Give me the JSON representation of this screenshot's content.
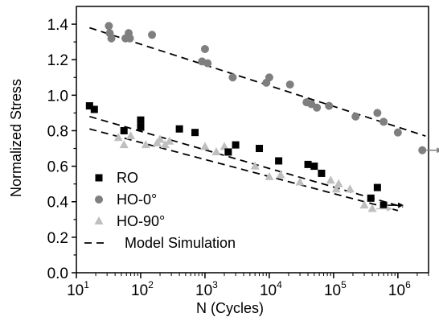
{
  "chart_data": {
    "type": "scatter",
    "xlabel": "N (Cycles)",
    "ylabel": "Normalized Stress",
    "x_scale": "log",
    "xlim": [
      10,
      3000000
    ],
    "ylim": [
      0.0,
      1.5
    ],
    "x_tick_labels": [
      {
        "value": 10,
        "base": "10",
        "exp": "1"
      },
      {
        "value": 100,
        "base": "10",
        "exp": "2"
      },
      {
        "value": 1000,
        "base": "10",
        "exp": "3"
      },
      {
        "value": 10000,
        "base": "10",
        "exp": "4"
      },
      {
        "value": 100000,
        "base": "10",
        "exp": "5"
      },
      {
        "value": 1000000,
        "base": "10",
        "exp": "6"
      }
    ],
    "y_tick_labels": [
      "0.0",
      "0.2",
      "0.4",
      "0.6",
      "0.8",
      "1.0",
      "1.2",
      "1.4"
    ],
    "y_ticks": [
      0.0,
      0.2,
      0.4,
      0.6,
      0.8,
      1.0,
      1.2,
      1.4
    ],
    "grid": false,
    "legend_position": "bottom-left",
    "series": [
      {
        "name": "RO",
        "marker": "square",
        "color": "#000000",
        "points": [
          [
            16,
            0.94
          ],
          [
            19,
            0.92
          ],
          [
            55,
            0.8
          ],
          [
            100,
            0.86
          ],
          [
            100,
            0.82
          ],
          [
            400,
            0.81
          ],
          [
            700,
            0.79
          ],
          [
            2300,
            0.68
          ],
          [
            3000,
            0.72
          ],
          [
            7000,
            0.7
          ],
          [
            14000,
            0.63
          ],
          [
            40000,
            0.61
          ],
          [
            50000,
            0.6
          ],
          [
            65000,
            0.56
          ],
          [
            380000,
            0.42
          ],
          [
            480000,
            0.48
          ],
          [
            600000,
            0.38
          ]
        ],
        "runout_arrows": [
          [
            600000,
            0.38
          ]
        ]
      },
      {
        "name": "HO-0°",
        "marker": "circle",
        "color": "#7f7f7f",
        "points": [
          [
            32,
            1.39
          ],
          [
            33,
            1.35
          ],
          [
            35,
            1.32
          ],
          [
            58,
            1.32
          ],
          [
            65,
            1.35
          ],
          [
            68,
            1.32
          ],
          [
            150,
            1.34
          ],
          [
            900,
            1.19
          ],
          [
            1000,
            1.26
          ],
          [
            1100,
            1.18
          ],
          [
            2700,
            1.1
          ],
          [
            9000,
            1.07
          ],
          [
            10000,
            1.1
          ],
          [
            21000,
            1.06
          ],
          [
            38000,
            0.96
          ],
          [
            45000,
            0.95
          ],
          [
            55000,
            0.93
          ],
          [
            85000,
            0.94
          ],
          [
            220000,
            0.88
          ],
          [
            480000,
            0.9
          ],
          [
            600000,
            0.85
          ],
          [
            1000000,
            0.79
          ],
          [
            2400000,
            0.69
          ]
        ],
        "runout_arrows": [
          [
            2400000,
            0.69
          ]
        ]
      },
      {
        "name": "HO-90°",
        "marker": "triangle",
        "color": "#bfbfbf",
        "points": [
          [
            45,
            0.76
          ],
          [
            55,
            0.72
          ],
          [
            70,
            0.77
          ],
          [
            120,
            0.72
          ],
          [
            180,
            0.73
          ],
          [
            200,
            0.75
          ],
          [
            240,
            0.72
          ],
          [
            280,
            0.74
          ],
          [
            1000,
            0.71
          ],
          [
            1500,
            0.68
          ],
          [
            2000,
            0.71
          ],
          [
            6000,
            0.6
          ],
          [
            10000,
            0.54
          ],
          [
            15000,
            0.55
          ],
          [
            30000,
            0.51
          ],
          [
            90000,
            0.52
          ],
          [
            110000,
            0.47
          ],
          [
            120000,
            0.5
          ],
          [
            180000,
            0.47
          ],
          [
            300000,
            0.38
          ],
          [
            400000,
            0.36
          ]
        ],
        "runout_arrows": [
          [
            400000,
            0.36
          ]
        ]
      },
      {
        "name": "Model Simulation",
        "style": "dashed",
        "color": "#000000",
        "lines": [
          [
            [
              16,
              1.38
            ],
            [
              2700000,
              0.77
            ]
          ],
          [
            [
              16,
              0.88
            ],
            [
              1200000,
              0.37
            ]
          ],
          [
            [
              16,
              0.81
            ],
            [
              1000000,
              0.35
            ]
          ]
        ]
      }
    ],
    "legend": [
      {
        "label": "RO",
        "marker": "square",
        "color": "#000000"
      },
      {
        "label": "HO-0°",
        "marker": "circle",
        "color": "#7f7f7f"
      },
      {
        "label": "HO-90°",
        "marker": "triangle",
        "color": "#bfbfbf"
      },
      {
        "label": "Model Simulation",
        "marker": "dashed-line",
        "color": "#000000"
      }
    ]
  }
}
